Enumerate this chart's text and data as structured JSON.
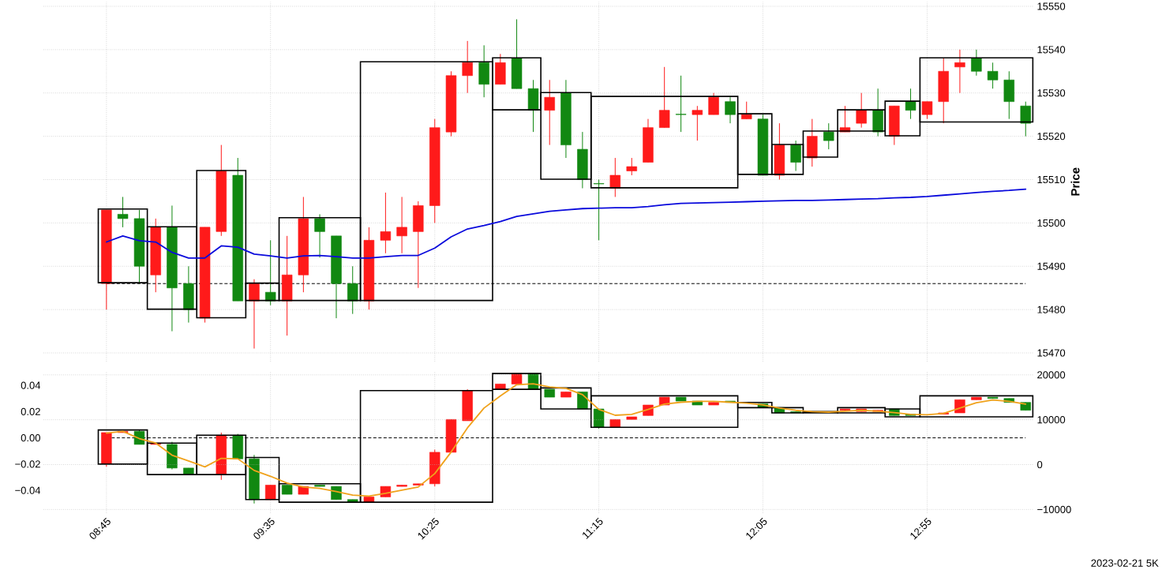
{
  "chart_data": [
    {
      "type": "candlestick",
      "ylabel": "Price",
      "x": [
        8.75,
        8.833,
        8.917,
        9.0,
        9.083,
        9.167,
        9.25,
        9.333,
        9.417,
        9.5,
        9.583,
        9.667,
        9.75,
        9.833,
        9.917,
        10.0,
        10.083,
        10.167,
        10.25,
        10.333,
        10.417,
        10.5,
        10.583,
        10.667,
        10.75,
        10.833,
        10.917,
        11.0,
        11.083,
        11.167,
        11.25,
        11.333,
        11.417,
        11.5,
        11.583,
        11.667,
        11.75,
        11.833,
        11.917,
        12.0,
        12.083,
        12.167,
        12.25,
        12.333,
        12.417,
        12.5,
        12.583,
        12.667,
        12.75,
        12.833,
        12.917,
        13.0,
        13.083,
        13.167,
        13.25,
        13.333,
        13.417
      ],
      "xlim": [
        8.43,
        13.46
      ],
      "xticks": [
        {
          "value": 8.75,
          "label": null
        },
        {
          "value": 9.583,
          "label": null
        },
        {
          "value": 10.417,
          "label": null
        },
        {
          "value": 11.25,
          "label": null
        },
        {
          "value": 12.083,
          "label": null
        },
        {
          "value": 12.917,
          "label": null
        }
      ],
      "ylim": [
        15468,
        15551
      ],
      "yticks": [
        15470,
        15480,
        15490,
        15500,
        15510,
        15520,
        15530,
        15540,
        15550
      ],
      "grid": true,
      "tick_labels": "y",
      "ref_lines": [
        {
          "axis": "y",
          "value": 15486,
          "color": "#000000",
          "line_style": "dashed"
        }
      ],
      "series": [
        {
          "ohlc": [
            [
              15486,
              15503,
              15480,
              15503
            ],
            [
              15502,
              15506,
              15499,
              15501
            ],
            [
              15501,
              15503,
              15486,
              15490
            ],
            [
              15488,
              15501,
              15484,
              15499
            ],
            [
              15499,
              15504,
              15475,
              15485
            ],
            [
              15486,
              15490,
              15477,
              15480
            ],
            [
              15478,
              15499,
              15477,
              15499
            ],
            [
              15498,
              15518,
              15497,
              15512
            ],
            [
              15511,
              15515,
              15482,
              15482
            ],
            [
              15482,
              15487,
              15471,
              15486
            ],
            [
              15484,
              15496,
              15481,
              15482
            ],
            [
              15482,
              15497,
              15474,
              15488
            ],
            [
              15488,
              15506,
              15484,
              15501
            ],
            [
              15501,
              15502,
              15492,
              15498
            ],
            [
              15497,
              15497,
              15478,
              15486
            ],
            [
              15486,
              15490,
              15479,
              15482
            ],
            [
              15482,
              15499,
              15480,
              15496
            ],
            [
              15496,
              15507,
              15493,
              15498
            ],
            [
              15497,
              15506,
              15493,
              15499
            ],
            [
              15498,
              15505,
              15485,
              15504
            ],
            [
              15504,
              15524,
              15500,
              15522
            ],
            [
              15521,
              15535,
              15520,
              15534
            ],
            [
              15534,
              15542,
              15530,
              15537
            ],
            [
              15537,
              15541,
              15529,
              15532
            ],
            [
              15532,
              15539,
              15532,
              15537
            ],
            [
              15538,
              15547,
              15531,
              15531
            ],
            [
              15531,
              15533,
              15521,
              15526
            ],
            [
              15526,
              15533,
              15518,
              15529
            ],
            [
              15530,
              15533,
              15515,
              15518
            ],
            [
              15517,
              15521,
              15508,
              15510
            ],
            [
              15509.1,
              15510,
              15496,
              15509
            ],
            [
              15508,
              15515,
              15506,
              15511
            ],
            [
              15512,
              15515,
              15511,
              15513
            ],
            [
              15514,
              15524,
              15514,
              15522
            ],
            [
              15522,
              15536,
              15522,
              15526
            ],
            [
              15525.1,
              15534,
              15521,
              15525
            ],
            [
              15525,
              15527,
              15519,
              15526
            ],
            [
              15525,
              15530,
              15525,
              15529
            ],
            [
              15528,
              15529,
              15523,
              15525
            ],
            [
              15524,
              15528,
              15524,
              15525
            ],
            [
              15524,
              15525,
              15511,
              15511
            ],
            [
              15511,
              15523,
              15510,
              15518
            ],
            [
              15518,
              15519,
              15512,
              15514
            ],
            [
              15515,
              15524,
              15513,
              15520
            ],
            [
              15521,
              15523,
              15517,
              15519
            ],
            [
              15521,
              15527,
              15521,
              15522
            ],
            [
              15523,
              15530,
              15522,
              15526
            ],
            [
              15526,
              15531,
              15520,
              15521
            ],
            [
              15520,
              15527,
              15518,
              15527
            ],
            [
              15528,
              15531,
              15524,
              15526
            ],
            [
              15525,
              15528,
              15524,
              15528
            ],
            [
              15528,
              15538,
              15523,
              15535
            ],
            [
              15536,
              15540,
              15530,
              15537
            ],
            [
              15538,
              15540,
              15534,
              15535
            ],
            [
              15535,
              15537,
              15531,
              15533
            ],
            [
              15533,
              15535,
              15524,
              15528
            ],
            [
              15527,
              15528,
              15520,
              15523
            ]
          ],
          "colors": [
            "#ff1a1a",
            "#118811",
            "#118811",
            "#ff1a1a",
            "#118811",
            "#118811",
            "#ff1a1a",
            "#ff1a1a",
            "#118811",
            "#ff1a1a",
            "#118811",
            "#ff1a1a",
            "#ff1a1a",
            "#118811",
            "#118811",
            "#118811",
            "#ff1a1a",
            "#ff1a1a",
            "#ff1a1a",
            "#ff1a1a",
            "#ff1a1a",
            "#ff1a1a",
            "#ff1a1a",
            "#118811",
            "#ff1a1a",
            "#118811",
            "#118811",
            "#ff1a1a",
            "#118811",
            "#118811",
            "#118811",
            "#ff1a1a",
            "#ff1a1a",
            "#ff1a1a",
            "#ff1a1a",
            "#118811",
            "#ff1a1a",
            "#ff1a1a",
            "#118811",
            "#ff1a1a",
            "#118811",
            "#ff1a1a",
            "#118811",
            "#ff1a1a",
            "#118811",
            "#ff1a1a",
            "#ff1a1a",
            "#118811",
            "#ff1a1a",
            "#118811",
            "#ff1a1a",
            "#ff1a1a",
            "#ff1a1a",
            "#118811",
            "#118811",
            "#118811",
            "#118811"
          ]
        },
        {
          "type": "line",
          "color": "#0a0adc",
          "values": [
            15495.6,
            15497,
            15495.9,
            15495.6,
            15493.2,
            15491.9,
            15491.9,
            15494.7,
            15494.4,
            15492.8,
            15492.4,
            15491.9,
            15492.4,
            15492.5,
            15492.2,
            15491.9,
            15491.9,
            15492.2,
            15492.5,
            15492.5,
            15494.2,
            15496.8,
            15498.6,
            15499.4,
            15500.3,
            15501.5,
            15502.1,
            15502.7,
            15503,
            15503.3,
            15503.4,
            15503.5,
            15503.5,
            15503.8,
            15504.2,
            15504.5,
            15504.6,
            15504.7,
            15504.8,
            15504.9,
            15505,
            15505.1,
            15505.2,
            15505.2,
            15505.3,
            15505.4,
            15505.5,
            15505.6,
            15505.8,
            15505.9,
            15506.1,
            15506.4,
            15506.7,
            15507,
            15507.3,
            15507.5,
            15507.8
          ]
        },
        {
          "type": "bar",
          "color": "#000000",
          "x": [
            8.833,
            9.083,
            9.333,
            9.542,
            9.833,
            10.375,
            10.833,
            11.083,
            11.583,
            12.042,
            12.208,
            12.375,
            12.583,
            12.792,
            13.167
          ],
          "base": [
            15486.2,
            15480.1,
            15478.1,
            15482.1,
            15482.1,
            15482.1,
            15526.1,
            15510.1,
            15508.1,
            15511.2,
            15511.2,
            15515.2,
            15521.2,
            15520.1,
            15523.3
          ],
          "values": [
            17,
            19,
            34,
            4,
            19.1,
            55.1,
            12,
            20,
            21.1,
            14,
            6.9,
            6,
            4.9,
            8,
            14.8
          ]
        }
      ]
    },
    {
      "type": "candlestick",
      "x": [
        8.75,
        8.833,
        8.917,
        9.0,
        9.083,
        9.167,
        9.25,
        9.333,
        9.417,
        9.5,
        9.583,
        9.667,
        9.75,
        9.833,
        9.917,
        10.0,
        10.083,
        10.167,
        10.25,
        10.333,
        10.417,
        10.5,
        10.583,
        10.667,
        10.75,
        10.833,
        10.917,
        11.0,
        11.083,
        11.167,
        11.25,
        11.333,
        11.417,
        11.5,
        11.583,
        11.667,
        11.75,
        11.833,
        11.917,
        12.0,
        12.083,
        12.167,
        12.25,
        12.333,
        12.417,
        12.5,
        12.583,
        12.667,
        12.75,
        12.833,
        12.917,
        13.0,
        13.083,
        13.167,
        13.25,
        13.333,
        13.417
      ],
      "xlim": [
        8.43,
        13.46
      ],
      "xticks": [
        {
          "value": 8.75,
          "label": "08:45"
        },
        {
          "value": 9.583,
          "label": "09:35"
        },
        {
          "value": 10.417,
          "label": "10:25"
        },
        {
          "value": 11.25,
          "label": "11:15"
        },
        {
          "value": 12.083,
          "label": "12:05"
        },
        {
          "value": 12.917,
          "label": "12:55"
        }
      ],
      "ylim": [
        -0.0573,
        0.0507
      ],
      "yticks": [
        {
          "value": -0.04,
          "label": "−0.04"
        },
        {
          "value": -0.02,
          "label": "−0.02"
        },
        {
          "value": 0,
          "label": "0.00"
        },
        0.02,
        0.04
      ],
      "y2lim": [
        -10800,
        20800
      ],
      "y2ticks": [
        {
          "value": -10000,
          "label": "−10000"
        },
        0,
        10000,
        20000
      ],
      "grid": true,
      "ref_lines": [
        {
          "axis": "y",
          "value": 0,
          "color": "#000000",
          "line_style": "dashed"
        }
      ],
      "annotations": [
        "2023-02-21 5K"
      ],
      "series": [
        {
          "ohlc": [
            [
              -0.02,
              0.004,
              -0.022,
              0.004
            ],
            [
              0.004,
              0.005,
              0.004,
              0.005
            ],
            [
              0.005,
              0.006,
              -0.005,
              -0.005
            ],
            [
              -0.005,
              -0.004,
              -0.005,
              -0.004
            ],
            [
              -0.005,
              -0.003,
              -0.024,
              -0.023
            ],
            [
              -0.023,
              -0.023,
              -0.028,
              -0.028
            ],
            null,
            [
              -0.028,
              0.004,
              -0.032,
              0.002
            ],
            [
              0.002,
              0.003,
              -0.016,
              -0.016
            ],
            [
              -0.016,
              -0.013,
              -0.05,
              -0.047
            ],
            [
              -0.047,
              -0.036,
              -0.047,
              -0.036
            ],
            [
              -0.036,
              -0.036,
              -0.043,
              -0.043
            ],
            [
              -0.043,
              -0.037,
              -0.043,
              -0.037
            ],
            [
              -0.036,
              -0.036,
              -0.037,
              -0.037
            ],
            [
              -0.037,
              -0.037,
              -0.047,
              -0.047
            ],
            [
              -0.047,
              -0.047,
              -0.049,
              -0.049
            ],
            [
              -0.049,
              -0.045,
              -0.049,
              -0.045
            ],
            [
              -0.045,
              -0.037,
              -0.045,
              -0.037
            ],
            [
              -0.037,
              -0.036,
              -0.037,
              -0.036
            ],
            [
              -0.036,
              -0.035,
              -0.036,
              -0.035
            ],
            [
              -0.035,
              -0.009,
              -0.037,
              -0.011
            ],
            [
              -0.011,
              0.014,
              -0.011,
              0.014
            ],
            [
              0.013,
              0.037,
              0.013,
              0.036
            ],
            null,
            [
              0.037,
              0.041,
              0.037,
              0.041
            ],
            [
              0.041,
              0.049,
              0.041,
              0.049
            ],
            [
              0.049,
              0.049,
              0.037,
              0.037
            ],
            [
              0.037,
              0.037,
              0.031,
              0.031
            ],
            [
              0.031,
              0.035,
              0.031,
              0.035
            ],
            [
              0.035,
              0.035,
              0.022,
              0.022
            ],
            [
              0.022,
              0.022,
              0.007,
              0.008
            ],
            [
              0.008,
              0.014,
              0.008,
              0.014
            ],
            [
              0.014,
              0.016,
              0.014,
              0.016
            ],
            [
              0.017,
              0.025,
              0.017,
              0.025
            ],
            [
              0.025,
              0.031,
              0.025,
              0.031
            ],
            [
              0.031,
              0.031,
              0.028,
              0.028
            ],
            [
              0.028,
              0.028,
              0.025,
              0.025
            ],
            [
              0.025,
              0.027,
              0.025,
              0.027
            ],
            [
              0.028,
              0.028,
              0.027,
              0.027
            ],
            null,
            [
              0.026,
              0.026,
              0.023,
              0.023
            ],
            [
              0.023,
              0.023,
              0.019,
              0.019
            ],
            [
              0.02,
              0.02,
              0.019,
              0.019
            ],
            null,
            null,
            [
              0.021,
              0.022,
              0.021,
              0.022
            ],
            [
              0.02,
              0.022,
              0.02,
              0.022
            ],
            [
              0.02,
              0.021,
              0.02,
              0.021
            ],
            [
              0.022,
              0.022,
              0.017,
              0.017
            ],
            [
              0.018,
              0.018,
              0.017,
              0.017
            ],
            null,
            [
              0.018,
              0.019,
              0.018,
              0.019
            ],
            [
              0.019,
              0.029,
              0.019,
              0.029
            ],
            [
              0.029,
              0.031,
              0.029,
              0.031
            ],
            [
              0.031,
              0.031,
              0.03,
              0.03
            ],
            [
              0.03,
              0.03,
              0.027,
              0.027
            ],
            [
              0.027,
              0.027,
              0.021,
              0.021
            ]
          ],
          "colors": [
            "#ff1a1a",
            "#ff1a1a",
            "#118811",
            "#ff1a1a",
            "#118811",
            "#118811",
            null,
            "#ff1a1a",
            "#118811",
            "#118811",
            "#ff1a1a",
            "#118811",
            "#ff1a1a",
            "#118811",
            "#118811",
            "#118811",
            "#ff1a1a",
            "#ff1a1a",
            "#ff1a1a",
            "#ff1a1a",
            "#ff1a1a",
            "#ff1a1a",
            "#ff1a1a",
            null,
            "#ff1a1a",
            "#ff1a1a",
            "#118811",
            "#118811",
            "#ff1a1a",
            "#118811",
            "#118811",
            "#ff1a1a",
            "#ff1a1a",
            "#ff1a1a",
            "#ff1a1a",
            "#118811",
            "#118811",
            "#ff1a1a",
            "#118811",
            null,
            "#118811",
            "#118811",
            "#118811",
            null,
            null,
            "#ff1a1a",
            "#ff1a1a",
            "#ff1a1a",
            "#118811",
            "#118811",
            null,
            "#ff1a1a",
            "#ff1a1a",
            "#ff1a1a",
            "#118811",
            "#118811",
            "#118811"
          ]
        },
        {
          "type": "bar",
          "color": "#000000",
          "x": [
            8.833,
            9.083,
            9.333,
            9.542,
            9.833,
            10.375,
            10.833,
            11.083,
            11.583,
            12.042,
            12.208,
            12.375,
            12.583,
            12.792,
            13.167
          ],
          "base": [
            -0.02,
            -0.028,
            -0.028,
            -0.047,
            -0.049,
            -0.049,
            0.037,
            0.022,
            0.008,
            0.023,
            0.019,
            0.019,
            0.019,
            0.016,
            0.016
          ],
          "values": [
            0.026,
            0.024,
            0.03,
            0.032,
            0.014,
            0.085,
            0.012,
            0.016,
            0.024,
            0.004,
            0.004,
            0.001,
            0.004,
            0.006,
            0.016
          ]
        },
        {
          "type": "line",
          "color": "#f0a21c",
          "axis": "y2",
          "values": [
            7000,
            7400,
            5800,
            4800,
            2100,
            800,
            -500,
            1400,
            1300,
            -1300,
            -2600,
            -4100,
            -5000,
            -5300,
            -6000,
            -6800,
            -7000,
            -6400,
            -5700,
            -5000,
            -2000,
            2800,
            8200,
            12600,
            15300,
            17800,
            18000,
            17300,
            17000,
            15600,
            12300,
            11000,
            11200,
            12300,
            13500,
            13900,
            14100,
            14100,
            13900,
            13700,
            13300,
            12600,
            12100,
            11800,
            11700,
            11900,
            12100,
            11900,
            11600,
            11200,
            11100,
            11400,
            12600,
            13800,
            14400,
            14100,
            13500
          ]
        }
      ]
    }
  ]
}
